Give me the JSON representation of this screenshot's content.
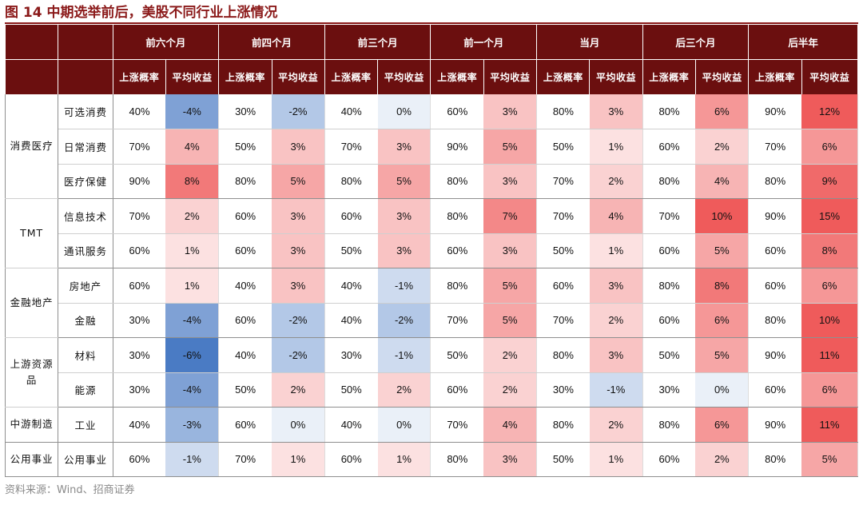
{
  "title": "图 14 中期选举前后，美股不同行业上涨情况",
  "source": "资料来源：Wind、招商证券",
  "colors": {
    "header_bg": "#6b0f0f",
    "title": "#8b1a1a",
    "negative_max": "#4a7bc4",
    "positive_max": "#ef5b5b"
  },
  "chart_data": {
    "type": "table",
    "periods": [
      "前六个月",
      "前四个月",
      "前三个月",
      "前一个月",
      "当月",
      "后三个月",
      "后半年"
    ],
    "metrics": [
      "上涨概率",
      "平均收益"
    ],
    "groups": [
      {
        "name": "消费医疗",
        "industries": [
          {
            "name": "可选消费",
            "prob": [
              "40%",
              "30%",
              "40%",
              "60%",
              "80%",
              "80%",
              "90%"
            ],
            "ret": [
              -4,
              -2,
              0,
              3,
              3,
              6,
              12
            ]
          },
          {
            "name": "日常消费",
            "prob": [
              "70%",
              "50%",
              "70%",
              "90%",
              "50%",
              "60%",
              "70%"
            ],
            "ret": [
              4,
              3,
              3,
              5,
              1,
              2,
              6
            ]
          },
          {
            "name": "医疗保健",
            "prob": [
              "90%",
              "80%",
              "80%",
              "80%",
              "70%",
              "80%",
              "80%"
            ],
            "ret": [
              8,
              5,
              5,
              3,
              2,
              4,
              9
            ]
          }
        ]
      },
      {
        "name": "TMT",
        "industries": [
          {
            "name": "信息技术",
            "prob": [
              "70%",
              "60%",
              "60%",
              "80%",
              "70%",
              "70%",
              "90%"
            ],
            "ret": [
              2,
              3,
              3,
              7,
              4,
              10,
              15
            ]
          },
          {
            "name": "通讯服务",
            "prob": [
              "60%",
              "60%",
              "50%",
              "60%",
              "50%",
              "60%",
              "60%"
            ],
            "ret": [
              1,
              3,
              3,
              3,
              1,
              5,
              8
            ]
          }
        ]
      },
      {
        "name": "金融地产",
        "industries": [
          {
            "name": "房地产",
            "prob": [
              "60%",
              "40%",
              "40%",
              "80%",
              "60%",
              "80%",
              "60%"
            ],
            "ret": [
              1,
              3,
              -1,
              5,
              3,
              8,
              6
            ]
          },
          {
            "name": "金融",
            "prob": [
              "30%",
              "60%",
              "40%",
              "70%",
              "70%",
              "60%",
              "80%"
            ],
            "ret": [
              -4,
              -2,
              -2,
              5,
              2,
              6,
              10
            ]
          }
        ]
      },
      {
        "name": "上游资源品",
        "industries": [
          {
            "name": "材料",
            "prob": [
              "30%",
              "40%",
              "30%",
              "50%",
              "80%",
              "50%",
              "90%"
            ],
            "ret": [
              -6,
              -2,
              -1,
              2,
              3,
              5,
              11
            ]
          },
          {
            "name": "能源",
            "prob": [
              "30%",
              "50%",
              "50%",
              "60%",
              "30%",
              "30%",
              "60%"
            ],
            "ret": [
              -4,
              2,
              2,
              2,
              -1,
              0,
              6
            ]
          }
        ]
      },
      {
        "name": "中游制造",
        "industries": [
          {
            "name": "工业",
            "prob": [
              "40%",
              "60%",
              "40%",
              "70%",
              "80%",
              "80%",
              "90%"
            ],
            "ret": [
              -3,
              0,
              0,
              4,
              2,
              6,
              11
            ]
          }
        ]
      },
      {
        "name": "公用事业",
        "industries": [
          {
            "name": "公用事业",
            "prob": [
              "60%",
              "70%",
              "60%",
              "80%",
              "50%",
              "60%",
              "80%"
            ],
            "ret": [
              -1,
              1,
              1,
              3,
              1,
              2,
              5
            ]
          }
        ]
      }
    ]
  }
}
